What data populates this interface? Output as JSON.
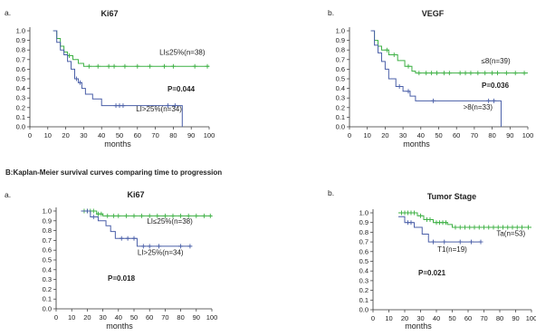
{
  "section_b_title": "B:Kaplan-Meier survival curves comparing time to progression",
  "colors": {
    "green": "#3cb043",
    "blue": "#4a5fa8",
    "axis": "#333333"
  },
  "chart_data": [
    {
      "type": "line",
      "panel_label": "a.",
      "title": "Ki67",
      "xlabel": "months",
      "ylabel": "",
      "xlim": [
        0,
        100
      ],
      "ylim": [
        0,
        1.0
      ],
      "xticks": [
        0,
        10,
        20,
        30,
        40,
        50,
        60,
        70,
        80,
        90,
        100
      ],
      "yticks": [
        0.0,
        0.1,
        0.2,
        0.3,
        0.4,
        0.5,
        0.6,
        0.7,
        0.8,
        0.9,
        1.0
      ],
      "grid": false,
      "p_value": "P=0.044",
      "series": [
        {
          "name": "LI≤25%(n=38)",
          "color": "green",
          "label_pos": [
            85,
            0.75
          ],
          "steps": [
            [
              13,
              1.0
            ],
            [
              15,
              0.92
            ],
            [
              17,
              0.84
            ],
            [
              19,
              0.78
            ],
            [
              21,
              0.74
            ],
            [
              24,
              0.7
            ],
            [
              27,
              0.66
            ],
            [
              30,
              0.63
            ],
            [
              100,
              0.63
            ]
          ],
          "censors": [
            22,
            33,
            38,
            44,
            47,
            53,
            60,
            67,
            75,
            80,
            92,
            99
          ]
        },
        {
          "name": "LI>25%(n=34)",
          "color": "blue",
          "label_pos": [
            72,
            0.16
          ],
          "steps": [
            [
              13,
              1.0
            ],
            [
              15,
              0.88
            ],
            [
              17,
              0.8
            ],
            [
              19,
              0.75
            ],
            [
              21,
              0.68
            ],
            [
              23,
              0.6
            ],
            [
              25,
              0.5
            ],
            [
              27,
              0.46
            ],
            [
              29,
              0.4
            ],
            [
              31,
              0.34
            ],
            [
              35,
              0.29
            ],
            [
              40,
              0.22
            ],
            [
              85,
              0.22
            ],
            [
              85,
              0.0
            ]
          ],
          "censors": [
            26,
            28,
            48,
            50,
            52,
            77,
            81
          ]
        }
      ]
    },
    {
      "type": "line",
      "panel_label": "b.",
      "title": "VEGF",
      "xlabel": "months",
      "ylabel": "",
      "xlim": [
        0,
        100
      ],
      "ylim": [
        0,
        1.0
      ],
      "xticks": [
        0,
        10,
        20,
        30,
        40,
        50,
        60,
        70,
        80,
        90,
        100
      ],
      "yticks": [
        0.0,
        0.1,
        0.2,
        0.3,
        0.4,
        0.5,
        0.6,
        0.7,
        0.8,
        0.9,
        1.0
      ],
      "grid": false,
      "p_value": "P=0.036",
      "series": [
        {
          "name": "≤8(n=39)",
          "color": "green",
          "label_pos": [
            82,
            0.66
          ],
          "steps": [
            [
              12,
              1.0
            ],
            [
              14,
              0.9
            ],
            [
              16,
              0.84
            ],
            [
              18,
              0.8
            ],
            [
              22,
              0.75
            ],
            [
              27,
              0.69
            ],
            [
              31,
              0.63
            ],
            [
              35,
              0.58
            ],
            [
              37,
              0.56
            ],
            [
              100,
              0.56
            ]
          ],
          "censors": [
            21,
            25,
            33,
            39,
            43,
            46,
            49,
            53,
            56,
            62,
            65,
            68,
            72,
            76,
            80,
            83,
            88,
            93,
            98
          ]
        },
        {
          "name": ">8(n=33)",
          "color": "blue",
          "label_pos": [
            72,
            0.18
          ],
          "steps": [
            [
              12,
              1.0
            ],
            [
              14,
              0.85
            ],
            [
              16,
              0.77
            ],
            [
              18,
              0.68
            ],
            [
              20,
              0.6
            ],
            [
              22,
              0.5
            ],
            [
              26,
              0.42
            ],
            [
              30,
              0.37
            ],
            [
              34,
              0.32
            ],
            [
              37,
              0.27
            ],
            [
              85,
              0.27
            ],
            [
              85,
              0.0
            ]
          ],
          "censors": [
            28,
            33,
            47,
            78,
            81
          ]
        }
      ]
    },
    {
      "type": "line",
      "panel_label": "a.",
      "title": "Ki67",
      "xlabel": "months",
      "ylabel": "",
      "xlim": [
        0,
        100
      ],
      "ylim": [
        0,
        1.0
      ],
      "xticks": [
        0,
        10,
        20,
        30,
        40,
        50,
        60,
        70,
        80,
        90,
        100
      ],
      "yticks": [
        0.0,
        0.1,
        0.2,
        0.3,
        0.4,
        0.5,
        0.6,
        0.7,
        0.8,
        0.9,
        1.0
      ],
      "grid": false,
      "p_value": "P=0.018",
      "series": [
        {
          "name": "LI≤25%(n=38)",
          "color": "green",
          "label_pos": [
            73,
            0.87
          ],
          "steps": [
            [
              16,
              1.0
            ],
            [
              26,
              0.97
            ],
            [
              30,
              0.95
            ],
            [
              100,
              0.95
            ]
          ],
          "censors": [
            18,
            20,
            22,
            24,
            27,
            29,
            33,
            37,
            40,
            45,
            50,
            55,
            60,
            65,
            70,
            75,
            80,
            85,
            90,
            95,
            99
          ]
        },
        {
          "name": "LI>25%(n=34)",
          "color": "blue",
          "label_pos": [
            67,
            0.55
          ],
          "steps": [
            [
              16,
              1.0
            ],
            [
              22,
              0.94
            ],
            [
              27,
              0.9
            ],
            [
              32,
              0.85
            ],
            [
              35,
              0.79
            ],
            [
              38,
              0.72
            ],
            [
              52,
              0.64
            ],
            [
              86,
              0.64
            ]
          ],
          "censors": [
            20,
            24,
            42,
            46,
            50,
            56,
            60,
            66,
            80,
            86
          ]
        }
      ]
    },
    {
      "type": "line",
      "panel_label": "b.",
      "title": "Tumor Stage",
      "xlabel": "months",
      "ylabel": "",
      "xlim": [
        0,
        100
      ],
      "ylim": [
        0,
        1.0
      ],
      "xticks": [
        0,
        10,
        20,
        30,
        40,
        50,
        60,
        70,
        80,
        90,
        100
      ],
      "yticks": [
        0.0,
        0.1,
        0.2,
        0.3,
        0.4,
        0.5,
        0.6,
        0.7,
        0.8,
        0.9,
        1.0
      ],
      "grid": false,
      "p_value": "P=0.021",
      "series": [
        {
          "name": "Ta(n=53)",
          "color": "green",
          "label_pos": [
            87,
            0.76
          ],
          "steps": [
            [
              16,
              1.0
            ],
            [
              28,
              0.97
            ],
            [
              32,
              0.93
            ],
            [
              38,
              0.9
            ],
            [
              47,
              0.88
            ],
            [
              50,
              0.85
            ],
            [
              100,
              0.85
            ]
          ],
          "censors": [
            18,
            20,
            22,
            24,
            26,
            30,
            34,
            36,
            40,
            42,
            44,
            46,
            52,
            55,
            58,
            61,
            64,
            67,
            70,
            73,
            76,
            79,
            82,
            85,
            88,
            91,
            94,
            98
          ]
        },
        {
          "name": "T1(n=19)",
          "color": "blue",
          "label_pos": [
            50,
            0.6
          ],
          "steps": [
            [
              16,
              0.96
            ],
            [
              20,
              0.9
            ],
            [
              26,
              0.85
            ],
            [
              31,
              0.78
            ],
            [
              35,
              0.7
            ],
            [
              68,
              0.7
            ]
          ],
          "censors": [
            22,
            24,
            38,
            45,
            55,
            62,
            68
          ]
        }
      ]
    }
  ]
}
